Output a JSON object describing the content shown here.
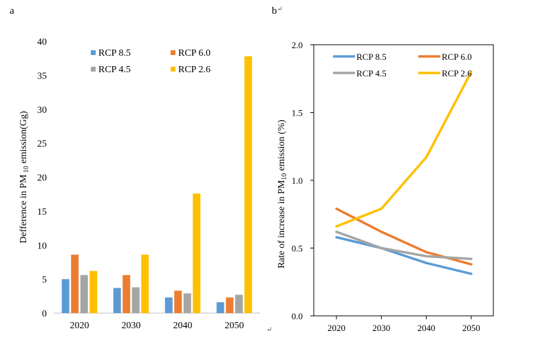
{
  "panel_labels": {
    "a": "a",
    "b": "b"
  },
  "return_mark": "↵",
  "colors": {
    "RCP 8.5": "#5b9bd5",
    "RCP 6.0": "#ed7d31",
    "RCP 4.5": "#a5a5a5",
    "RCP 2.6": "#ffc000"
  },
  "chart_data": [
    {
      "id": "a",
      "type": "bar",
      "title": "",
      "xlabel": "",
      "ylabel_parts": {
        "prefix": "Defference in PM",
        "sub": " 10",
        "suffix": " emission(Gg)"
      },
      "categories": [
        "2020",
        "2030",
        "2040",
        "2050"
      ],
      "ylim": [
        0,
        40
      ],
      "yticks": [
        0,
        5,
        10,
        15,
        20,
        25,
        30,
        35,
        40
      ],
      "legend_position": "top",
      "series": [
        {
          "name": "RCP 8.5",
          "values": [
            5.0,
            3.7,
            2.3,
            1.6
          ]
        },
        {
          "name": "RCP 6.0",
          "values": [
            8.6,
            5.6,
            3.3,
            2.3
          ]
        },
        {
          "name": "RCP 4.5",
          "values": [
            5.6,
            3.8,
            2.9,
            2.7
          ]
        },
        {
          "name": "RCP 2.6",
          "values": [
            6.2,
            8.6,
            17.6,
            37.8
          ]
        }
      ]
    },
    {
      "id": "b",
      "type": "line",
      "title": "",
      "xlabel": "",
      "ylabel_parts": {
        "prefix": "Rate of increase  in PM",
        "sub": "10",
        "suffix": " emission (%)"
      },
      "categories": [
        "2020",
        "2030",
        "2040",
        "2050"
      ],
      "ylim": [
        0,
        2
      ],
      "yticks": [
        "0.0",
        "0.5",
        "1.0",
        "1.5",
        "2.0"
      ],
      "legend_position": "top",
      "series": [
        {
          "name": "RCP 8.5",
          "values": [
            0.58,
            0.5,
            0.39,
            0.31
          ]
        },
        {
          "name": "RCP 6.0",
          "values": [
            0.79,
            0.62,
            0.47,
            0.38
          ]
        },
        {
          "name": "RCP 4.5",
          "values": [
            0.62,
            0.5,
            0.44,
            0.42
          ]
        },
        {
          "name": "RCP 2.6",
          "values": [
            0.66,
            0.79,
            1.17,
            1.8
          ]
        }
      ]
    }
  ]
}
